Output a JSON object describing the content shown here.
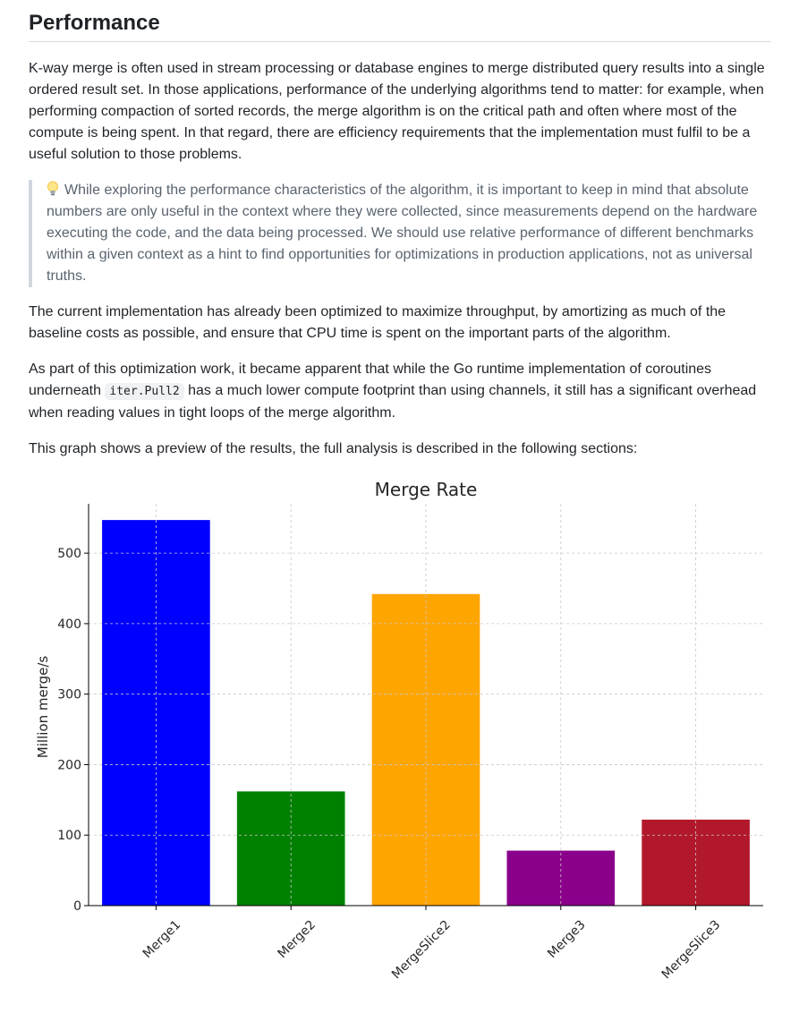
{
  "section": {
    "title": "Performance"
  },
  "paragraphs": {
    "intro": "K-way merge is often used in stream processing or database engines to merge distributed query results into a single ordered result set. In those applications, performance of the underlying algorithms tend to matter: for example, when performing compaction of sorted records, the merge algorithm is on the critical path and often where most of the compute is being spent. In that regard, there are efficiency requirements that the implementation must fulfil to be a useful solution to those problems.",
    "note": "While exploring the performance characteristics of the algorithm, it is important to keep in mind that absolute numbers are only useful in the context where they were collected, since measurements depend on the hardware executing the code, and the data being processed. We should use relative performance of different benchmarks within a given context as a hint to find opportunities for optimizations in production applications, not as universal truths.",
    "current": "The current implementation has already been optimized to maximize throughput, by amortizing as much of the baseline costs as possible, and ensure that CPU time is spent on the important parts of the algorithm.",
    "optimization_before": "As part of this optimization work, it became apparent that while the Go runtime implementation of coroutines underneath ",
    "optimization_code": "iter.Pull2",
    "optimization_after": " has a much lower compute footprint than using channels, it still has a significant overhead when reading values in tight loops of the merge algorithm.",
    "graph_intro": "This graph shows a preview of the results, the full analysis is described in the following sections:"
  },
  "icons": {
    "note_icon": "lightbulb-icon"
  },
  "chart_data": {
    "type": "bar",
    "title": "Merge Rate",
    "xlabel": "",
    "ylabel": "Million merge/s",
    "categories": [
      "Merge1",
      "Merge2",
      "MergeSlice2",
      "Merge3",
      "MergeSlice3"
    ],
    "values": [
      547,
      162,
      442,
      78,
      122
    ],
    "colors": [
      "#0000ff",
      "#008000",
      "#ffa500",
      "#8b008b",
      "#b2182b"
    ],
    "ylim": [
      0,
      570
    ],
    "yticks": [
      0,
      100,
      200,
      300,
      400,
      500
    ],
    "grid": true,
    "grid_style": "dashed"
  }
}
